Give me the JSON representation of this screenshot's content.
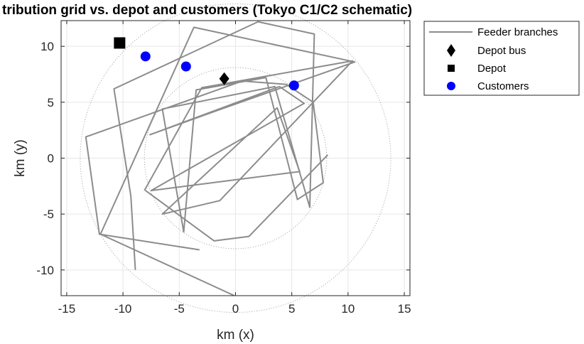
{
  "chart_data": {
    "type": "line",
    "title": "tribution grid vs. depot and customers (Tokyo C1/C2 schematic)",
    "xlabel": "km (x)",
    "ylabel": "km (y)",
    "xlim": [
      -15.5,
      15.5
    ],
    "ylim": [
      -12.3,
      12.3
    ],
    "xticks": [
      -15,
      -10,
      -5,
      0,
      5,
      10,
      15
    ],
    "yticks": [
      -10,
      -5,
      0,
      5,
      10
    ],
    "grid": true,
    "legend_position": "outside-top-right",
    "colors": {
      "feeder": "#8c8c8c",
      "depot_bus": "#000000",
      "depot": "#000000",
      "customers": "#0000ff",
      "reference_circle": "#9a9a9a",
      "grid": "#e6e6e6"
    },
    "reference_circles": [
      {
        "center": [
          0,
          0
        ],
        "radius": 13.8
      },
      {
        "center": [
          0,
          0
        ],
        "radius": 8.1
      }
    ],
    "series": [
      {
        "name": "Feeder branches",
        "kind": "line",
        "x": [
          -3.2,
          -12.1,
          -13.3,
          0.6,
          4.5,
          6.9,
          7.8,
          5.5,
          2.7,
          -3.5,
          -4.6,
          -6.5,
          3.5,
          6.6,
          7.0,
          2.0,
          -10.8,
          -9.3,
          -8.9
        ],
        "y": [
          -8.2,
          -6.8,
          1.9,
          6.9,
          6.6,
          5.0,
          -2.2,
          -3.7,
          7.2,
          6.1,
          -6.6,
          4.4,
          6.4,
          -4.4,
          11.1,
          12.2,
          6.2,
          -3.4,
          -10.0
        ]
      },
      {
        "name": "",
        "kind": "line",
        "x": [
          -8.0,
          -1.9,
          1.2,
          8.2
        ],
        "y": [
          -2.9,
          -7.4,
          -7.0,
          0.3
        ]
      },
      {
        "name": "",
        "kind": "line",
        "x": [
          -0.1,
          -12.0,
          -3.7,
          10.6,
          -1.8,
          -7.6,
          3.9,
          6.1,
          -7.5,
          5.7,
          3.7,
          -6.5,
          -1.4,
          10.4,
          -3.0,
          -8.1
        ],
        "y": [
          -12.3,
          -6.8,
          11.7,
          8.6,
          4.2,
          2.1,
          6.4,
          4.9,
          -2.9,
          -1.2,
          4.5,
          -5.0,
          -3.8,
          8.7,
          6.3,
          -2.9
        ]
      },
      {
        "name": "Depot bus",
        "kind": "marker",
        "marker": "diamond",
        "x": [
          -1.0
        ],
        "y": [
          7.1
        ]
      },
      {
        "name": "Depot",
        "kind": "marker",
        "marker": "square",
        "x": [
          -10.3
        ],
        "y": [
          10.3
        ]
      },
      {
        "name": "Customers",
        "kind": "marker",
        "marker": "circle",
        "x": [
          -8.0,
          -4.4,
          5.2
        ],
        "y": [
          9.1,
          8.2,
          6.5
        ]
      }
    ]
  }
}
